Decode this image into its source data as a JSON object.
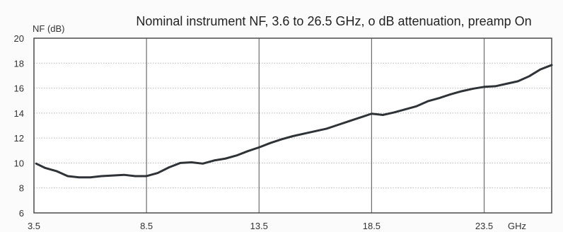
{
  "chart_data": {
    "type": "line",
    "title": "Nominal instrument NF, 3.6 to 26.5 GHz, o dB attenuation, preamp On",
    "ylabel": "NF (dB)",
    "xlabel": "GHz",
    "xlim": [
      3.5,
      26.5
    ],
    "ylim": [
      6,
      20
    ],
    "x_ticks": [
      3.5,
      8.5,
      13.5,
      18.5,
      23.5
    ],
    "x_tick_labels": [
      "3.5",
      "8.5",
      "13.5",
      "18.5",
      "23.5"
    ],
    "y_ticks": [
      6,
      8,
      10,
      12,
      14,
      16,
      18,
      20
    ],
    "y_tick_labels": [
      "6",
      "8",
      "10",
      "12",
      "14",
      "16",
      "18",
      "20"
    ],
    "grid": true,
    "series": [
      {
        "line_color": "#2f3337",
        "x": [
          3.6,
          4.0,
          4.5,
          5.0,
          5.5,
          6.0,
          6.5,
          7.0,
          7.5,
          8.0,
          8.5,
          9.0,
          9.5,
          10.0,
          10.5,
          11.0,
          11.5,
          12.0,
          12.5,
          13.0,
          13.5,
          14.0,
          14.5,
          15.0,
          15.5,
          16.0,
          16.5,
          17.0,
          17.5,
          18.0,
          18.5,
          19.0,
          19.5,
          20.0,
          20.5,
          21.0,
          21.5,
          22.0,
          22.5,
          23.0,
          23.5,
          24.0,
          24.5,
          25.0,
          25.5,
          26.0,
          26.5
        ],
        "values": [
          9.95,
          9.6,
          9.35,
          8.95,
          8.85,
          8.85,
          8.95,
          9.0,
          9.05,
          8.95,
          8.95,
          9.2,
          9.65,
          10.0,
          10.05,
          9.95,
          10.2,
          10.35,
          10.6,
          10.95,
          11.25,
          11.6,
          11.9,
          12.15,
          12.35,
          12.55,
          12.75,
          13.05,
          13.35,
          13.65,
          13.95,
          13.85,
          14.05,
          14.3,
          14.55,
          14.95,
          15.2,
          15.5,
          15.75,
          15.95,
          16.1,
          16.15,
          16.35,
          16.55,
          16.95,
          17.5,
          17.85
        ]
      }
    ]
  }
}
